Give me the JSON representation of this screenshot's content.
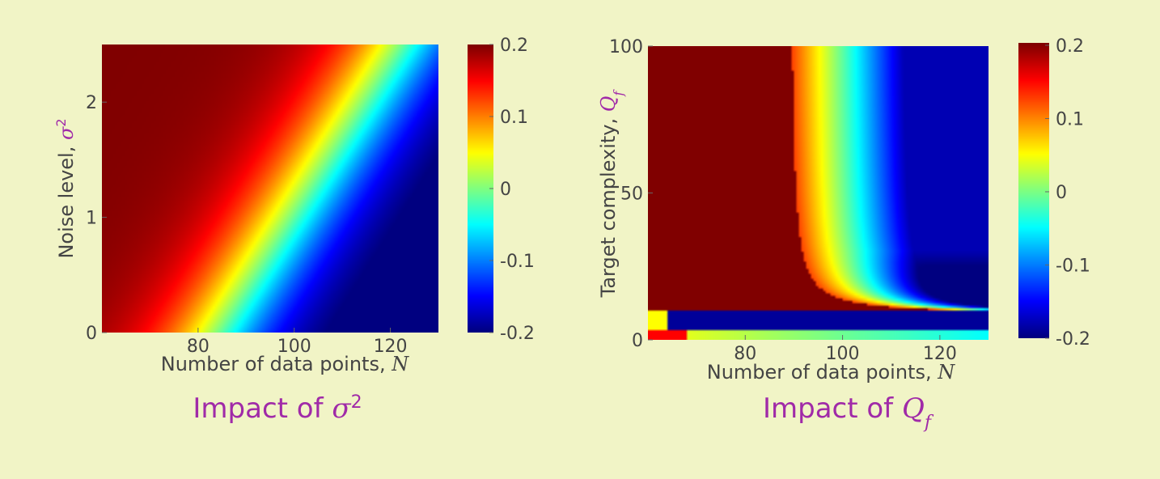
{
  "colors": {
    "background": "#f1f4c6",
    "caption": "#a02aa8",
    "text": "#444444"
  },
  "colormap": "jet",
  "chart_data": [
    {
      "type": "heatmap",
      "title": "",
      "caption": {
        "prefix": "Impact of ",
        "symbol": "σ",
        "sup": "2"
      },
      "xlabel": {
        "text": "Number of data points, ",
        "symbol": "N"
      },
      "ylabel": {
        "text": "Noise level, ",
        "symbol": "σ",
        "sup": "2"
      },
      "xlim": [
        60,
        130
      ],
      "ylim": [
        0,
        2.5
      ],
      "xticks": [
        80,
        100,
        120
      ],
      "yticks": [
        0,
        1,
        2
      ],
      "clim": [
        -0.2,
        0.2
      ],
      "colorbar_ticks": [
        "0.2",
        "0.1",
        "0",
        "-0.1",
        "-0.2"
      ],
      "zero_contour_x_at_y0": 84,
      "zero_contour_slope_N_per_unit_y": 15.2,
      "transition_width_N": 22,
      "grid": false
    },
    {
      "type": "heatmap",
      "title": "",
      "caption": {
        "prefix": "Impact of ",
        "symbol": "Q",
        "sub": "f"
      },
      "xlabel": {
        "text": "Number of data points, ",
        "symbol": "N"
      },
      "ylabel": {
        "text": "Target complexity, ",
        "symbol": "Q",
        "sub": "f"
      },
      "xlim": [
        60,
        130
      ],
      "ylim": [
        0,
        100
      ],
      "xticks": [
        80,
        100,
        120
      ],
      "yticks": [
        0,
        50,
        100
      ],
      "clim": [
        -0.2,
        0.2
      ],
      "colorbar_ticks": [
        "0.2",
        "0.1",
        "0",
        "-0.1",
        "-0.2"
      ],
      "zero_contour_x_at_high_Qf": 94,
      "low_Qf_band": [
        0,
        10
      ],
      "grid": false
    }
  ]
}
